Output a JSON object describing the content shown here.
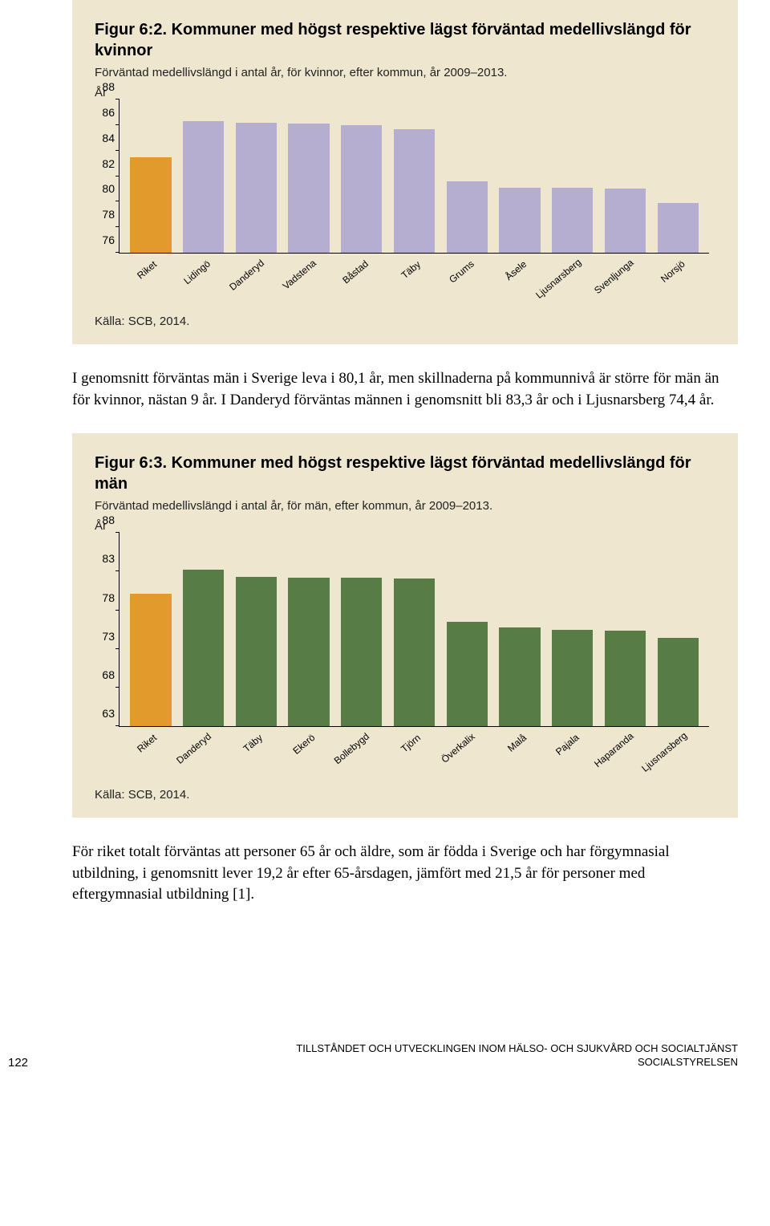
{
  "chart1": {
    "title_lead": "Figur 6:2.",
    "title_rest": " Kommuner med högst respektive lägst förväntad medellivslängd för kvinnor",
    "subtitle": "Förväntad medellivslängd i antal år, för kvinnor, efter kommun, år 2009–2013.",
    "ylabel": "År",
    "ymin": 76,
    "ymax": 88,
    "ytick_step": 2,
    "categories": [
      "Riket",
      "Lidingö",
      "Danderyd",
      "Vadstena",
      "Båstad",
      "Täby",
      "Grums",
      "Åsele",
      "Ljusnarsberg",
      "Svenljunga",
      "Norsjö"
    ],
    "values": [
      83.5,
      86.3,
      86.2,
      86.1,
      86.0,
      85.7,
      81.6,
      81.1,
      81.1,
      81.0,
      79.9
    ],
    "bar_colors": [
      "#e29a2d",
      "#b6aed0",
      "#b6aed0",
      "#b6aed0",
      "#b6aed0",
      "#b6aed0",
      "#b6aed0",
      "#b6aed0",
      "#b6aed0",
      "#b6aed0",
      "#b6aed0"
    ],
    "source": "Källa: SCB, 2014.",
    "background_color": "#eee6cf"
  },
  "para1": "I genomsnitt förväntas män i Sverige leva i 80,1 år, men skillnaderna på kommunnivå är större för män än för kvinnor, nästan 9 år. I Danderyd förväntas männen i genomsnitt bli 83,3 år och i Ljusnarsberg 74,4 år.",
  "chart2": {
    "title_lead": "Figur 6:3.",
    "title_rest": " Kommuner med högst respektive lägst förväntad medellivslängd för män",
    "subtitle": "Förväntad medellivslängd i antal år, för män, efter kommun, år 2009–2013.",
    "ylabel": "År",
    "ymin": 63,
    "ymax": 88,
    "ytick_step": 5,
    "categories": [
      "Riket",
      "Danderyd",
      "Täby",
      "Ekerö",
      "Bollebygd",
      "Tjörn",
      "Överkalix",
      "Malå",
      "Pajala",
      "Haparanda",
      "Ljusnarsberg"
    ],
    "values": [
      80.1,
      83.3,
      82.3,
      82.2,
      82.2,
      82.1,
      76.5,
      75.8,
      75.5,
      75.4,
      74.4
    ],
    "bar_colors": [
      "#e29a2d",
      "#587c46",
      "#587c46",
      "#587c46",
      "#587c46",
      "#587c46",
      "#587c46",
      "#587c46",
      "#587c46",
      "#587c46",
      "#587c46"
    ],
    "source": "Källa: SCB, 2014.",
    "background_color": "#eee6cf"
  },
  "para2": "För riket totalt förväntas att personer 65 år och äldre, som är födda i Sverige och har förgymnasial utbildning, i genomsnitt lever 19,2 år efter 65-årsdagen, jämfört med 21,5 år för personer med eftergymnasial utbildning [1].",
  "footer": {
    "page": "122",
    "right1": "TILLSTÅNDET OCH UTVECKLINGEN INOM HÄLSO- OCH SJUKVÅRD OCH SOCIALTJÄNST",
    "right2": "SOCIALSTYRELSEN"
  }
}
